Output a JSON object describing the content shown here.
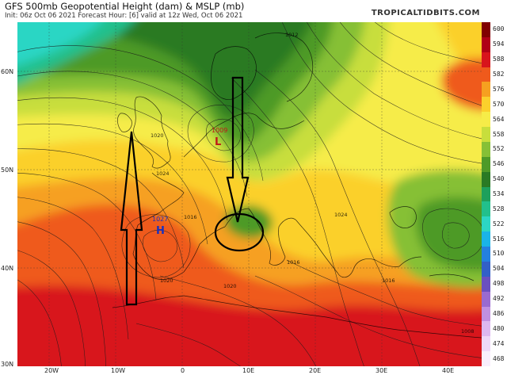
{
  "header": {
    "title": "GFS 500mb Geopotential Height (dam) & MSLP (mb)",
    "subtitle": "Init: 06z Oct 06 2021   Forecast Hour: [6]   valid at 12z Wed, Oct 06 2021",
    "brand": "TROPICALTIDBITS.COM"
  },
  "colorbar": [
    {
      "label": "600",
      "color": "#800000"
    },
    {
      "label": "594",
      "color": "#b00016"
    },
    {
      "label": "588",
      "color": "#d8141c"
    },
    {
      "label": "582",
      "color": "#ef5a1c"
    },
    {
      "label": "576",
      "color": "#f6a020"
    },
    {
      "label": "570",
      "color": "#fbd02c"
    },
    {
      "label": "564",
      "color": "#f6ec48"
    },
    {
      "label": "558",
      "color": "#c8de3c"
    },
    {
      "label": "552",
      "color": "#86c036"
    },
    {
      "label": "546",
      "color": "#4e9a28"
    },
    {
      "label": "540",
      "color": "#2a7a24"
    },
    {
      "label": "534",
      "color": "#1ea05c"
    },
    {
      "label": "528",
      "color": "#22c08c"
    },
    {
      "label": "522",
      "color": "#2cd6c4"
    },
    {
      "label": "516",
      "color": "#1ab4e8"
    },
    {
      "label": "510",
      "color": "#2480e0"
    },
    {
      "label": "504",
      "color": "#3260c8"
    },
    {
      "label": "498",
      "color": "#6a50c0"
    },
    {
      "label": "492",
      "color": "#9a6ad0"
    },
    {
      "label": "486",
      "color": "#c090e0"
    },
    {
      "label": "480",
      "color": "#ddb8f0"
    },
    {
      "label": "474",
      "color": "#eed8f8"
    },
    {
      "label": "468",
      "color": "#f8eefc"
    }
  ],
  "axes": {
    "lat": [
      "60N",
      "50N",
      "40N",
      "30N"
    ],
    "lon": [
      "20W",
      "10W",
      "0",
      "10E",
      "20E",
      "30E",
      "40E"
    ]
  },
  "pressure_centers": [
    {
      "type": "L",
      "value": "1009",
      "color": "#c01818"
    },
    {
      "type": "H",
      "value": "1027",
      "color": "#1830c0"
    }
  ],
  "isobar_labels": [
    "1012",
    "1020",
    "1024",
    "1016",
    "1020",
    "1016",
    "1024",
    "1020",
    "1016",
    "1008"
  ]
}
